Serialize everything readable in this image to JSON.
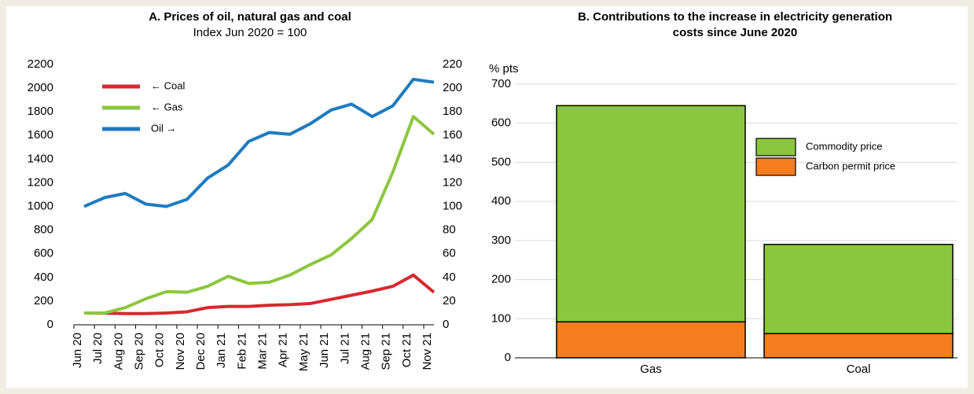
{
  "chart_data": [
    {
      "type": "line",
      "title": "A. Prices of oil, natural gas and coal",
      "subtitle": "Index Jun 2020 = 100",
      "categories": [
        "Jun 20",
        "Jul 20",
        "Aug 20",
        "Sep 20",
        "Oct 20",
        "Nov 20",
        "Dec 20",
        "Jan 21",
        "Feb 21",
        "Mar 21",
        "Apr 21",
        "May 21",
        "Jun 21",
        "Jul 21",
        "Aug 21",
        "Sep 21",
        "Oct 21",
        "Nov 21"
      ],
      "ylim": [
        0,
        2200
      ],
      "yticks": [
        0,
        200,
        400,
        600,
        800,
        1000,
        1200,
        1400,
        1600,
        1800,
        2000,
        2200
      ],
      "y2lim": [
        0,
        220
      ],
      "y2ticks": [
        0,
        20,
        40,
        60,
        80,
        100,
        120,
        140,
        160,
        180,
        200,
        220
      ],
      "legend": "upper left",
      "series": [
        {
          "name": "← Coal",
          "color": "#d7282f",
          "values": [
            100,
            98,
            95,
            95,
            100,
            110,
            145,
            155,
            155,
            165,
            170,
            180,
            215,
            250,
            285,
            325,
            420,
            275
          ]
        },
        {
          "name": "← Gas",
          "color": "#8cc63f",
          "values": [
            100,
            100,
            145,
            220,
            280,
            275,
            325,
            410,
            350,
            360,
            420,
            510,
            590,
            730,
            890,
            1290,
            1760,
            1610
          ]
        },
        {
          "name": "Oil →",
          "color": "#1f7bbf",
          "axis": "y2",
          "values": [
            100,
            107.5,
            111,
            102,
            100,
            106,
            124,
            135,
            155,
            162.5,
            161,
            170,
            181.5,
            186.5,
            176,
            185,
            207.5,
            205
          ]
        }
      ]
    },
    {
      "type": "stacked_bar",
      "title_lines": [
        "B. Contributions to the increase in electricity generation",
        "costs since June 2020"
      ],
      "ylabel": "% pts",
      "categories": [
        "Gas",
        "Coal"
      ],
      "ylim": [
        0,
        700
      ],
      "yticks": [
        0,
        100,
        200,
        300,
        400,
        500,
        600,
        700
      ],
      "grid": true,
      "legend": "right",
      "series": [
        {
          "name": "Carbon permit price",
          "color": "#f47d20",
          "values": [
            92,
            62
          ]
        },
        {
          "name": "Commodity price",
          "color": "#8cc63f",
          "values": [
            553,
            228
          ]
        }
      ]
    }
  ]
}
